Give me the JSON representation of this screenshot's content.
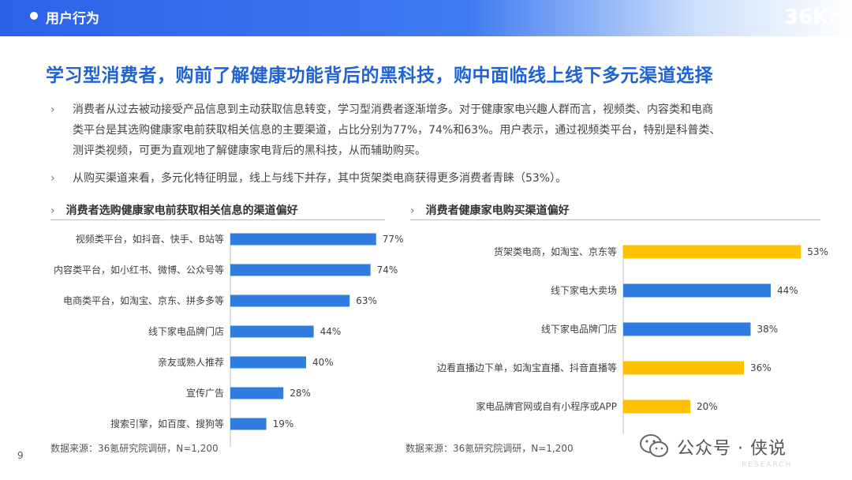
{
  "header": {
    "section_label": "用户行为",
    "brand": "36Kr"
  },
  "headline": "学习型消费者，购前了解健康功能背后的黑科技，购中面临线上线下多元渠道选择",
  "bullets": [
    {
      "chevron": "›",
      "lines": [
        "消费者从过去被动接受产品信息到主动获取信息转变，学习型消费者逐渐增多。对于健康家电兴趣人群而言，视频类、内容类和电商",
        "类平台是其选购健康家电前获取相关信息的主要渠道，占比分别为77%，74%和63%。用户表示，通过视频类平台，特别是科普类、",
        "测评类视频，可更为直观地了解健康家电背后的黑科技，从而辅助购买。"
      ]
    },
    {
      "chevron": "›",
      "lines": [
        "从购买渠道来看，多元化特征明显，线上与线下并存，其中货架类电商获得更多消费者青睐（53%）。"
      ]
    }
  ],
  "chart_data": [
    {
      "type": "bar",
      "orientation": "horizontal",
      "title": "消费者选购健康家电前获取相关信息的渠道偏好",
      "categories": [
        "视频类平台，如抖音、快手、B站等",
        "内容类平台，如小红书、微博、公众号等",
        "电商类平台，如淘宝、京东、拼多多等",
        "线下家电品牌门店",
        "亲友或熟人推荐",
        "宣传广告",
        "搜索引擎，如百度、搜狗等"
      ],
      "values": [
        77,
        74,
        63,
        44,
        40,
        28,
        19
      ],
      "value_labels": [
        "77%",
        "74%",
        "63%",
        "44%",
        "40%",
        "28%",
        "19%"
      ],
      "unit": "%",
      "colors": [
        "#2f7de1",
        "#2f7de1",
        "#2f7de1",
        "#2f7de1",
        "#2f7de1",
        "#2f7de1",
        "#2f7de1"
      ],
      "xlim": [
        0,
        100
      ],
      "grid": false,
      "legend": "none",
      "source": "数据来源：36氪研究院调研，N=1,200"
    },
    {
      "type": "bar",
      "orientation": "horizontal",
      "title": "消费者健康家电购买渠道偏好",
      "categories": [
        "货架类电商，如淘宝、京东等",
        "线下家电大卖场",
        "线下家电品牌门店",
        "边看直播边下单，如淘宝直播、抖音直播等",
        "家电品牌官网或自有小程序或APP"
      ],
      "values": [
        53,
        44,
        38,
        36,
        20
      ],
      "value_labels": [
        "53%",
        "44%",
        "38%",
        "36%",
        "20%"
      ],
      "unit": "%",
      "colors": [
        "#ffc000",
        "#2f7de1",
        "#2f7de1",
        "#ffc000",
        "#ffc000"
      ],
      "xlim": [
        0,
        100
      ],
      "grid": false,
      "legend": "none",
      "source": "数据来源：36氪研究院调研，N=1,200"
    }
  ],
  "page_number": "9",
  "watermark": {
    "text": "公众号 · 侠说",
    "faint": "RESEARCH"
  }
}
